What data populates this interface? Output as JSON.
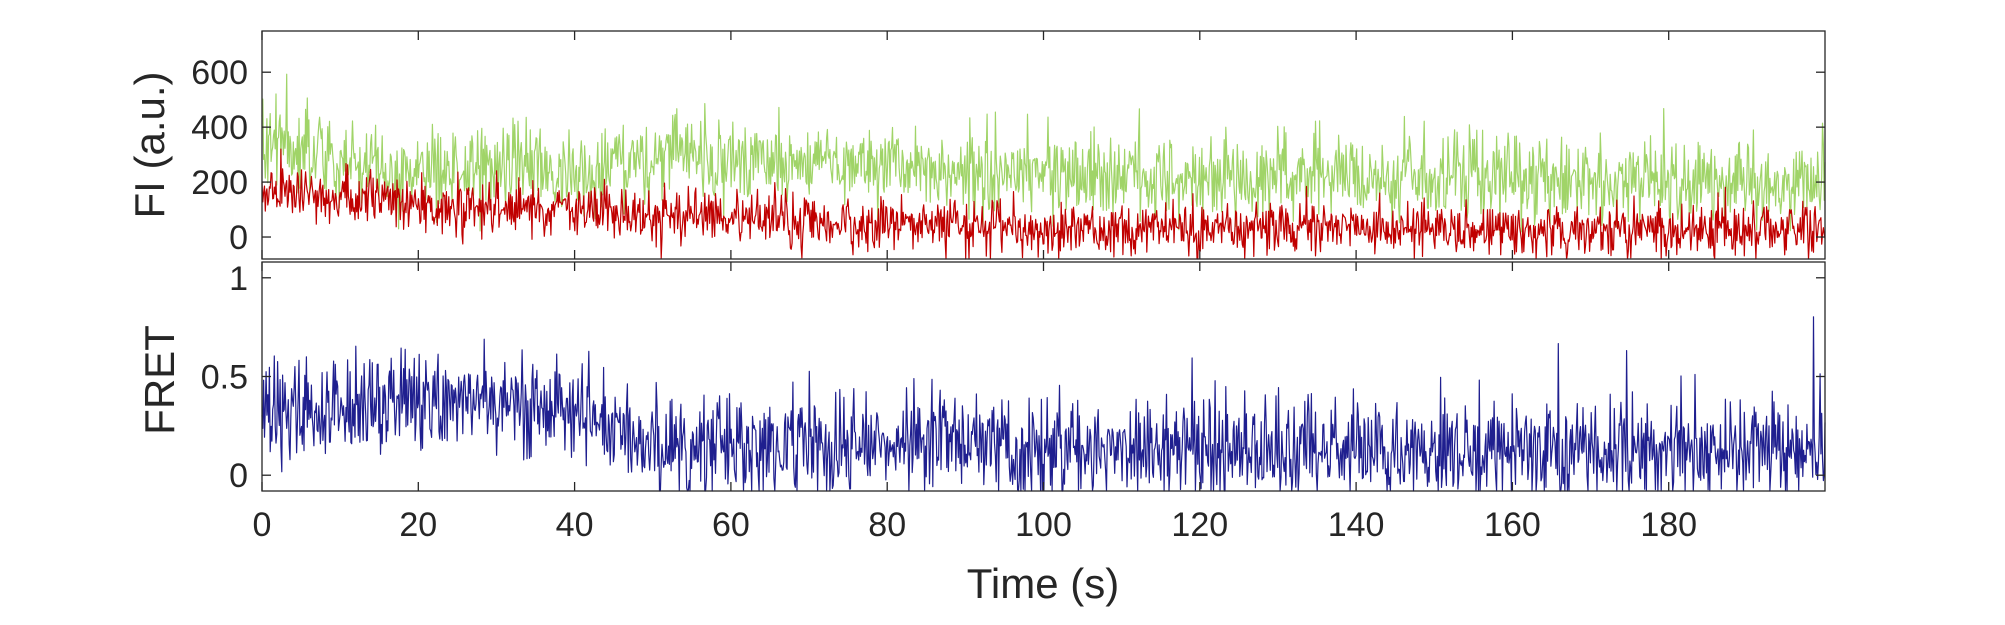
{
  "chart_data": [
    {
      "type": "line",
      "ylabel": "FI (a.u.)",
      "xlim": [
        0,
        200
      ],
      "ylim": [
        -80,
        750
      ],
      "xticks": [
        0,
        20,
        40,
        60,
        80,
        100,
        120,
        140,
        160,
        180
      ],
      "yticks": [
        0,
        200,
        400,
        600
      ],
      "series_colors": {
        "acceptor": "#a0d468",
        "donor": "#c00000"
      },
      "series": [
        {
          "x": [
            0,
            10,
            20,
            30,
            40,
            44,
            45,
            50,
            60,
            70,
            80,
            90,
            100,
            110,
            120,
            130,
            140,
            150,
            160,
            170,
            180,
            190,
            200
          ],
          "values": [
            330,
            270,
            250,
            240,
            230,
            225,
            300,
            290,
            270,
            260,
            250,
            240,
            230,
            220,
            215,
            220,
            225,
            215,
            210,
            205,
            210,
            200,
            195
          ]
        },
        {
          "x": [
            0,
            10,
            20,
            30,
            40,
            44,
            45,
            50,
            60,
            70,
            80,
            90,
            100,
            110,
            120,
            130,
            140,
            150,
            160,
            170,
            180,
            190,
            200
          ],
          "values": [
            180,
            140,
            120,
            110,
            100,
            95,
            85,
            80,
            70,
            55,
            45,
            40,
            30,
            30,
            30,
            35,
            40,
            30,
            25,
            25,
            30,
            25,
            25
          ]
        }
      ]
    },
    {
      "type": "line",
      "ylabel": "FRET",
      "xlabel": "Time (s)",
      "xlim": [
        0,
        200
      ],
      "ylim": [
        -0.08,
        1.08
      ],
      "xticks": [
        0,
        20,
        40,
        60,
        80,
        100,
        120,
        140,
        160,
        180
      ],
      "xtick_labels": [
        "0",
        "20",
        "40",
        "60",
        "80",
        "100",
        "120",
        "140",
        "160",
        "180"
      ],
      "yticks": [
        0,
        0.5,
        1
      ],
      "ytick_labels": [
        "0",
        "0.5",
        "1"
      ],
      "series_colors": {
        "fret": "#1f1f8f"
      },
      "series": [
        {
          "x": [
            0,
            10,
            20,
            30,
            40,
            44,
            45,
            50,
            60,
            70,
            80,
            90,
            100,
            110,
            120,
            130,
            140,
            150,
            160,
            170,
            180,
            190,
            200
          ],
          "values": [
            0.35,
            0.33,
            0.36,
            0.38,
            0.34,
            0.3,
            0.18,
            0.14,
            0.13,
            0.12,
            0.18,
            0.15,
            0.13,
            0.12,
            0.12,
            0.13,
            0.14,
            0.13,
            0.12,
            0.12,
            0.13,
            0.12,
            0.11
          ]
        }
      ]
    }
  ]
}
